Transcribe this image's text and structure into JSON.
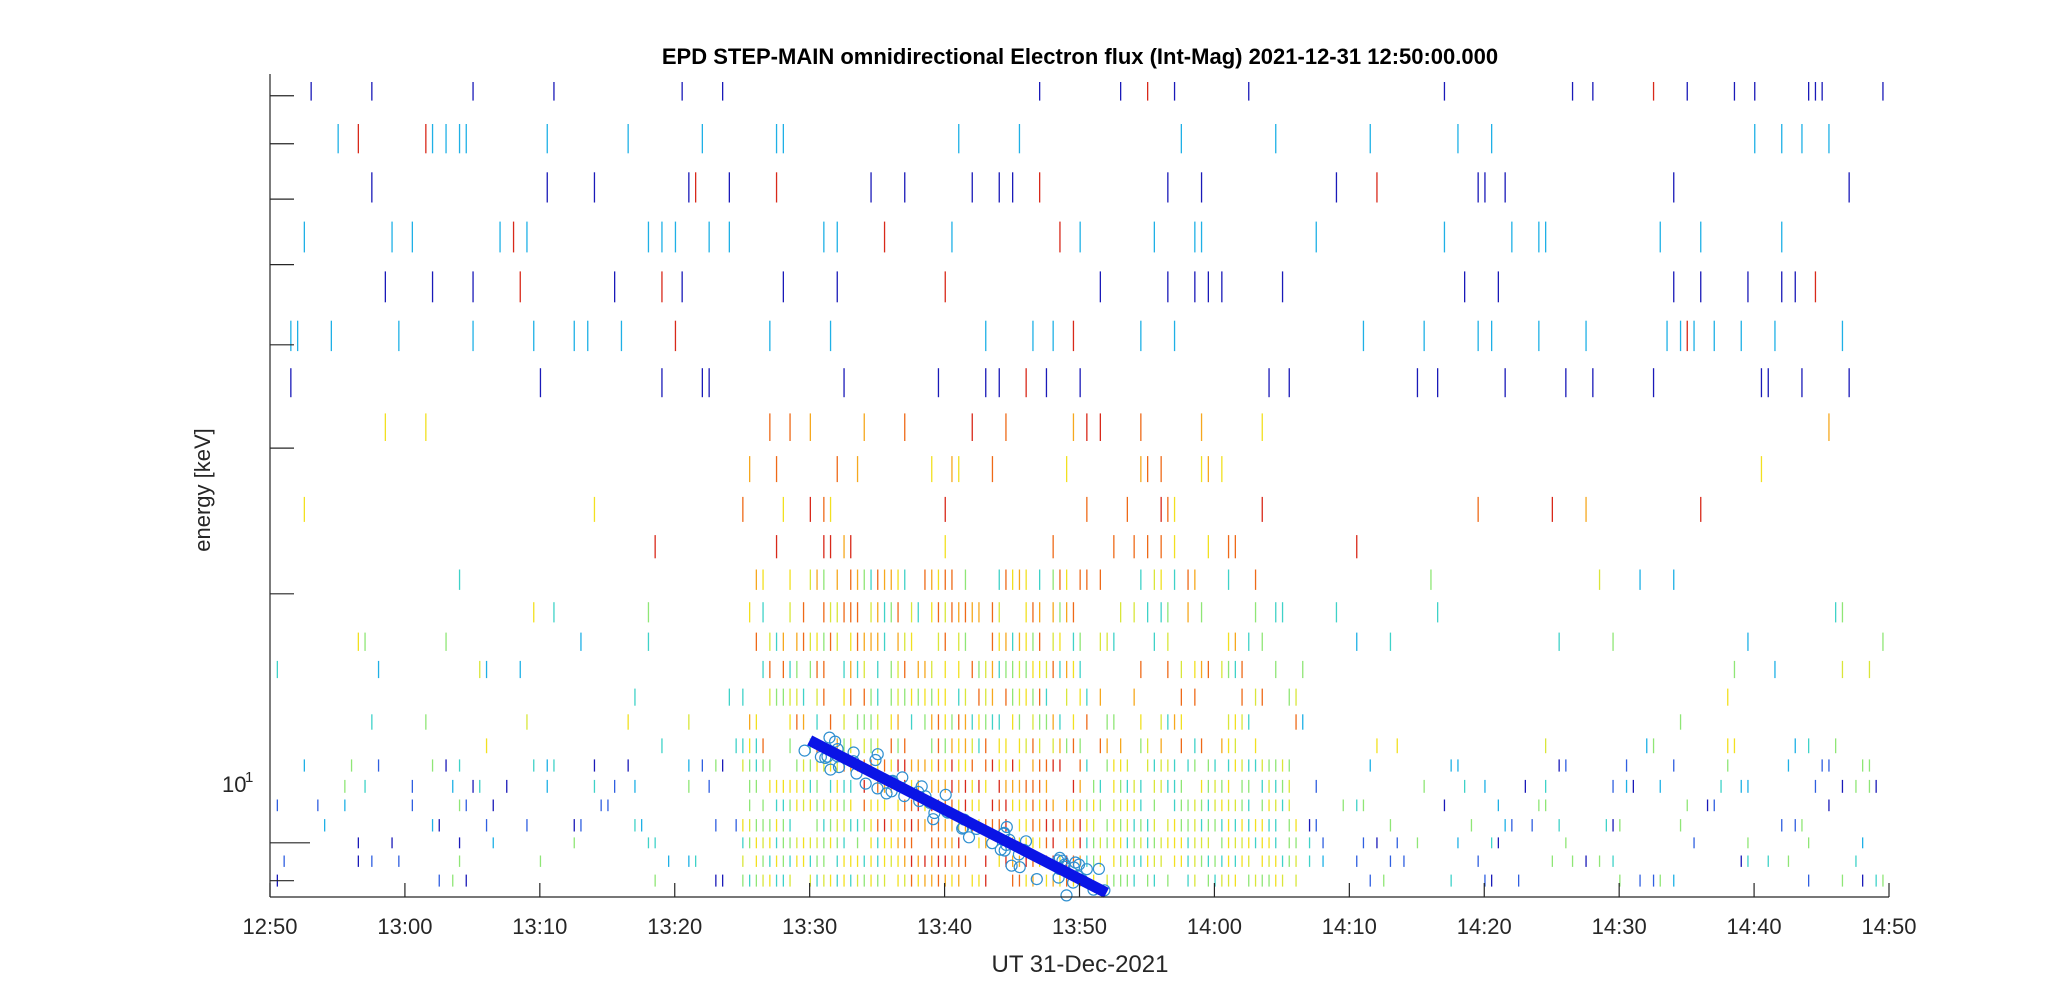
{
  "chart_data": {
    "type": "heatmap",
    "title": "EPD STEP-MAIN omnidirectional Electron flux (Int-Mag) 2021-12-31 12:50:00.000",
    "xlabel": "UT 31-Dec-2021",
    "ylabel": "energy [keV]",
    "x_tick_labels": [
      "12:50",
      "13:00",
      "13:10",
      "13:20",
      "13:30",
      "13:40",
      "13:50",
      "14:00",
      "14:10",
      "14:20",
      "14:30",
      "14:40",
      "14:50"
    ],
    "x_range_minutes_after_1250": [
      0,
      120
    ],
    "y_scale": "log",
    "y_tick_label": "10",
    "y_tick_label_exponent": "1",
    "y_minor_ticks_keV": [
      9,
      20,
      30,
      40,
      50,
      60,
      70,
      80
    ],
    "y_range_keV": [
      8.6,
      85
    ],
    "energy_bins_keV": [
      9.0,
      9.5,
      10.0,
      10.5,
      11.1,
      11.7,
      12.4,
      13.1,
      14.0,
      15.0,
      16.2,
      17.5,
      19.0,
      20.8,
      22.8,
      25.3,
      28.3,
      31.8,
      36.0,
      41.0,
      47.0,
      54.0,
      62.0,
      71.0,
      81.0
    ],
    "colormap": [
      "#1a1ab8",
      "#2f5fe0",
      "#1fb0e6",
      "#3fd2c8",
      "#8fe676",
      "#d9e63a",
      "#f2e020",
      "#f6a81e",
      "#ee6a18",
      "#d8291a"
    ],
    "enhancement_window_UT": [
      "13:25",
      "14:06"
    ],
    "fit_line": {
      "color": "#0a14e6",
      "start": {
        "time": "13:30",
        "energy_keV": 13.3
      },
      "end": {
        "time": "13:52",
        "energy_keV": 8.7
      }
    },
    "circle_marker_color": "#2f8fd0",
    "grid": false,
    "legend": "none"
  }
}
